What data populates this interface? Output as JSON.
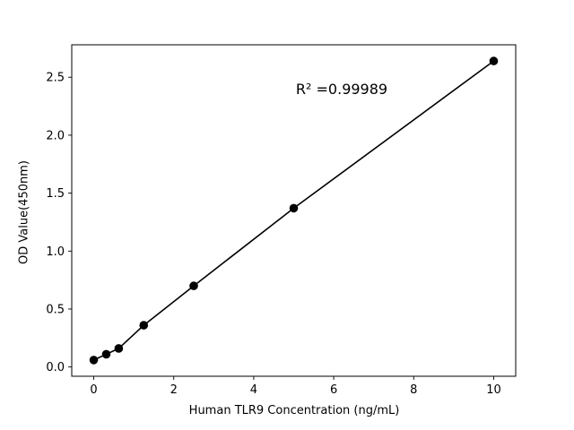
{
  "chart_data": {
    "type": "scatter",
    "title": "",
    "xlabel": "Human TLR9 Concentration (ng/mL)",
    "ylabel": "OD Value(450nm)",
    "annotation": "R² =0.99989",
    "x": [
      0,
      0.313,
      0.625,
      1.25,
      2.5,
      5,
      10
    ],
    "y": [
      0.06,
      0.11,
      0.16,
      0.36,
      0.7,
      1.37,
      2.64
    ],
    "xlim": [
      -0.55,
      10.55
    ],
    "ylim": [
      -0.08,
      2.78
    ],
    "xticks": [
      0,
      2,
      4,
      6,
      8,
      10
    ],
    "xtick_labels": [
      "0",
      "2",
      "4",
      "6",
      "8",
      "10"
    ],
    "yticks": [
      0.0,
      0.5,
      1.0,
      1.5,
      2.0,
      2.5
    ],
    "ytick_labels": [
      "0.0",
      "0.5",
      "1.0",
      "1.5",
      "2.0",
      "2.5"
    ],
    "line_color": "#000000",
    "marker_color": "#000000",
    "background_color": "#ffffff",
    "grid": false,
    "legend": "none",
    "marker_style": "filled-circle",
    "fit": "linear"
  }
}
